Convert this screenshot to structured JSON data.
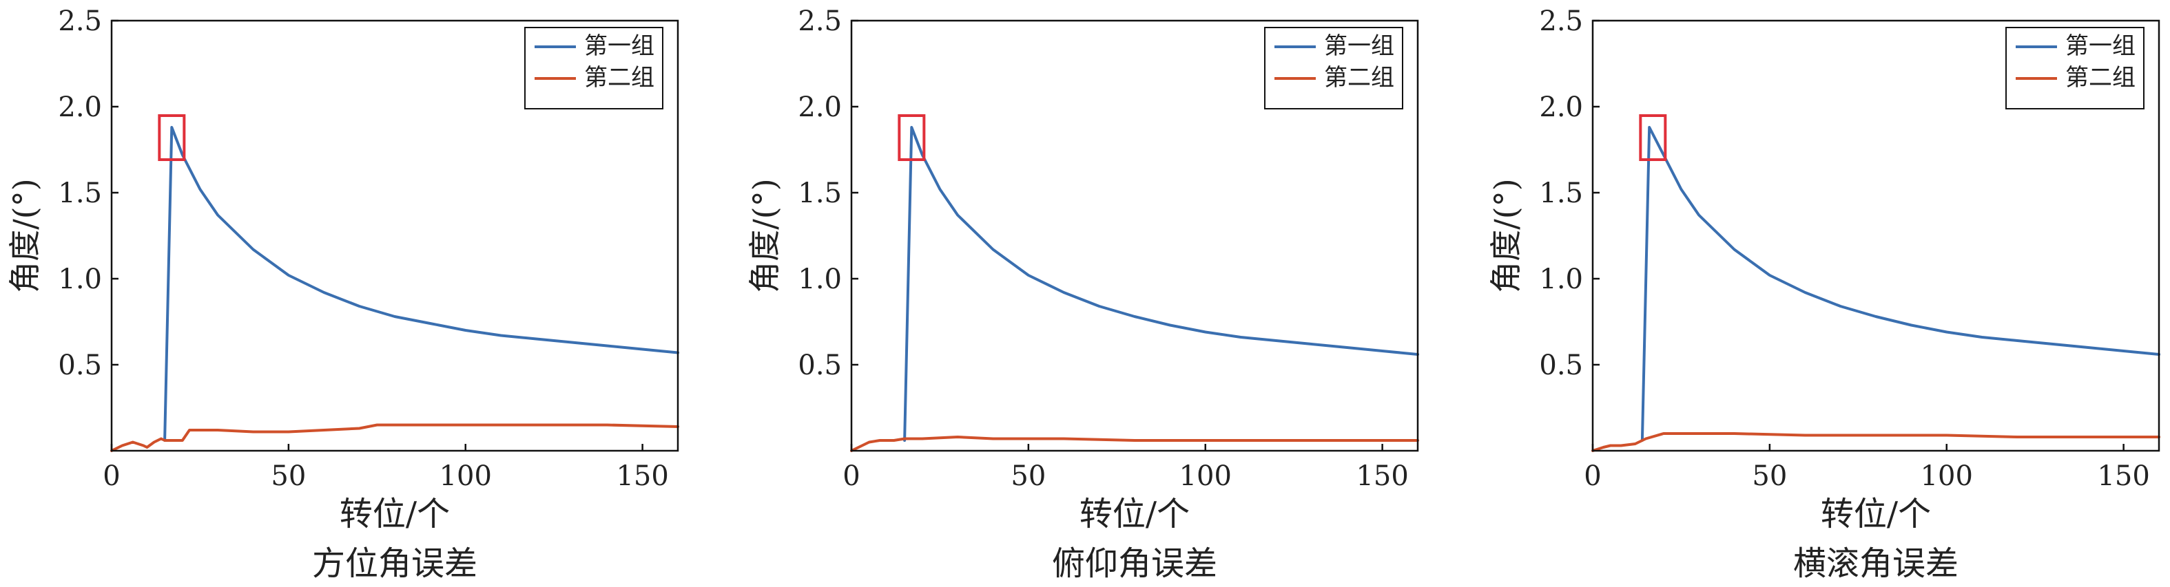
{
  "chart_data": [
    {
      "type": "line",
      "title": "方位角误差",
      "xlabel": "转位/个",
      "ylabel": "角度/(°)",
      "xlim": [
        0,
        160
      ],
      "ylim": [
        0,
        2.5
      ],
      "xticks": [
        0,
        50,
        100,
        150
      ],
      "yticks": [
        0.5,
        1.0,
        1.5,
        2.0,
        2.5
      ],
      "grid": false,
      "legend_position": "top-right",
      "highlight_box": {
        "x": 17,
        "y": 1.82,
        "color": "#e0303a"
      },
      "series": [
        {
          "name": "第一组",
          "color": "#3a6fb0",
          "x": [
            15,
            17,
            20,
            25,
            30,
            40,
            50,
            60,
            70,
            80,
            90,
            100,
            110,
            120,
            130,
            140,
            150,
            160
          ],
          "y": [
            0.06,
            1.88,
            1.72,
            1.52,
            1.37,
            1.17,
            1.02,
            0.92,
            0.84,
            0.78,
            0.74,
            0.7,
            0.67,
            0.65,
            0.63,
            0.61,
            0.59,
            0.57
          ]
        },
        {
          "name": "第二组",
          "color": "#d0502a",
          "x": [
            0,
            3,
            6,
            9,
            10,
            12,
            14,
            15,
            20,
            22,
            30,
            40,
            50,
            60,
            70,
            75,
            80,
            100,
            120,
            140,
            160
          ],
          "y": [
            0.0,
            0.03,
            0.05,
            0.03,
            0.02,
            0.05,
            0.07,
            0.06,
            0.06,
            0.12,
            0.12,
            0.11,
            0.11,
            0.12,
            0.13,
            0.15,
            0.15,
            0.15,
            0.15,
            0.15,
            0.14
          ]
        }
      ]
    },
    {
      "type": "line",
      "title": "俯仰角误差",
      "xlabel": "转位/个",
      "ylabel": "角度/(°)",
      "xlim": [
        0,
        160
      ],
      "ylim": [
        0,
        2.5
      ],
      "xticks": [
        0,
        50,
        100,
        150
      ],
      "yticks": [
        0.5,
        1.0,
        1.5,
        2.0,
        2.5
      ],
      "grid": false,
      "legend_position": "top-right",
      "highlight_box": {
        "x": 17,
        "y": 1.82,
        "color": "#e0303a"
      },
      "series": [
        {
          "name": "第一组",
          "color": "#3a6fb0",
          "x": [
            15,
            17,
            20,
            25,
            30,
            40,
            50,
            60,
            70,
            80,
            90,
            100,
            110,
            120,
            130,
            140,
            150,
            160
          ],
          "y": [
            0.06,
            1.88,
            1.72,
            1.52,
            1.37,
            1.17,
            1.02,
            0.92,
            0.84,
            0.78,
            0.73,
            0.69,
            0.66,
            0.64,
            0.62,
            0.6,
            0.58,
            0.56
          ]
        },
        {
          "name": "第二组",
          "color": "#d0502a",
          "x": [
            0,
            3,
            5,
            8,
            12,
            15,
            20,
            30,
            40,
            60,
            80,
            100,
            120,
            140,
            160
          ],
          "y": [
            0.0,
            0.03,
            0.05,
            0.06,
            0.06,
            0.07,
            0.07,
            0.08,
            0.07,
            0.07,
            0.06,
            0.06,
            0.06,
            0.06,
            0.06
          ]
        }
      ]
    },
    {
      "type": "line",
      "title": "横滚角误差",
      "xlabel": "转位/个",
      "ylabel": "角度/(°)",
      "xlim": [
        0,
        160
      ],
      "ylim": [
        0,
        2.5
      ],
      "xticks": [
        0,
        50,
        100,
        150
      ],
      "yticks": [
        0.5,
        1.0,
        1.5,
        2.0,
        2.5
      ],
      "grid": false,
      "legend_position": "top-right",
      "highlight_box": {
        "x": 17,
        "y": 1.82,
        "color": "#e0303a"
      },
      "series": [
        {
          "name": "第一组",
          "color": "#3a6fb0",
          "x": [
            14,
            16,
            20,
            25,
            30,
            40,
            50,
            60,
            70,
            80,
            90,
            100,
            110,
            120,
            130,
            140,
            150,
            160
          ],
          "y": [
            0.06,
            1.88,
            1.72,
            1.52,
            1.37,
            1.17,
            1.02,
            0.92,
            0.84,
            0.78,
            0.73,
            0.69,
            0.66,
            0.64,
            0.62,
            0.6,
            0.58,
            0.56
          ]
        },
        {
          "name": "第二组",
          "color": "#d0502a",
          "x": [
            0,
            3,
            5,
            8,
            12,
            15,
            20,
            25,
            40,
            60,
            80,
            100,
            120,
            140,
            160
          ],
          "y": [
            0.0,
            0.02,
            0.03,
            0.03,
            0.04,
            0.07,
            0.1,
            0.1,
            0.1,
            0.09,
            0.09,
            0.09,
            0.08,
            0.08,
            0.08
          ]
        }
      ]
    }
  ]
}
